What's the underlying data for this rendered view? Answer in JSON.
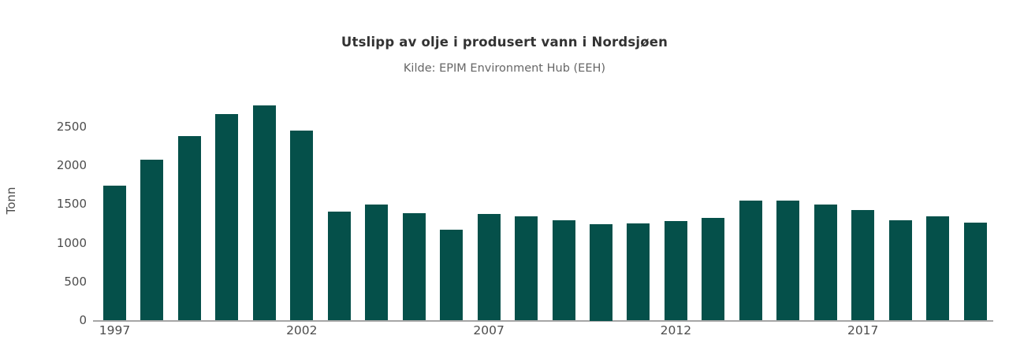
{
  "chart_data": {
    "type": "bar",
    "title": "Utslipp av olje i produsert vann i Nordsjøen",
    "subtitle": "Kilde: EPIM Environment Hub (EEH)",
    "ylabel": "Tonn",
    "xlabel": "",
    "categories": [
      1997,
      1998,
      1999,
      2000,
      2001,
      2002,
      2003,
      2004,
      2005,
      2006,
      2007,
      2008,
      2009,
      2010,
      2011,
      2012,
      2013,
      2014,
      2015,
      2016,
      2017,
      2018,
      2019,
      2020
    ],
    "values": [
      1740,
      2080,
      2380,
      2670,
      2780,
      2450,
      1410,
      1500,
      1390,
      1170,
      1380,
      1350,
      1300,
      1250,
      1260,
      1290,
      1330,
      1545,
      1550,
      1500,
      1430,
      1300,
      1350,
      1270
    ],
    "ylim": [
      0,
      2800
    ],
    "yticks": [
      0,
      500,
      1000,
      1500,
      2000,
      2500
    ],
    "xticks": [
      1997,
      2002,
      2007,
      2012,
      2017
    ],
    "grid": false,
    "legend": "none",
    "bar_color": "#05504a",
    "axis_line_color": "#a6a6a6",
    "title_color": "#333333",
    "subtitle_color": "#666666",
    "tick_label_color": "#4d4d4d"
  }
}
